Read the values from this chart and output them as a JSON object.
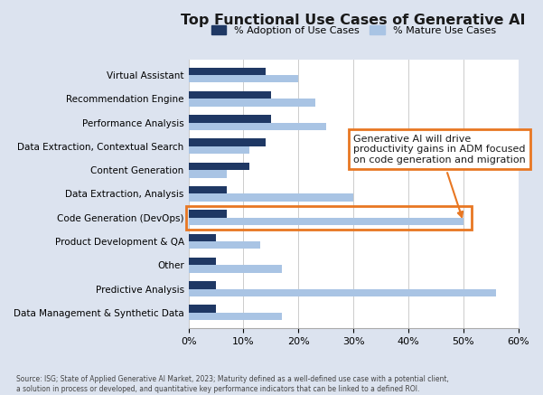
{
  "title": "Top Functional Use Cases of Generative AI",
  "categories": [
    "Virtual Assistant",
    "Recommendation Engine",
    "Performance Analysis",
    "Data Extraction, Contextual Search",
    "Content Generation",
    "Data Extraction, Analysis",
    "Code Generation (DevOps)",
    "Product Development & QA",
    "Other",
    "Predictive Analysis",
    "Data Management & Synthetic Data"
  ],
  "adoption": [
    14,
    15,
    15,
    14,
    11,
    7,
    7,
    5,
    5,
    5,
    5
  ],
  "mature": [
    20,
    23,
    25,
    11,
    7,
    30,
    50,
    13,
    17,
    56,
    17
  ],
  "adoption_color": "#1f3864",
  "mature_color": "#a9c4e4",
  "background_color": "#dce3ef",
  "plot_bg_color": "#ffffff",
  "bar_height": 0.32,
  "xlim": [
    0,
    60
  ],
  "xticks": [
    0,
    10,
    20,
    30,
    40,
    50,
    60
  ],
  "xtick_labels": [
    "0%",
    "10%",
    "20%",
    "30%",
    "40%",
    "50%",
    "60%"
  ],
  "annotation_text": "Generative AI will drive\nproductivity gains in ADM focused\non code generation and migration",
  "annotation_box_color": "#e87722",
  "highlighted_category": "Code Generation (DevOps)",
  "source_text": "Source: ISG; State of Applied Generative AI Market, 2023; Maturity defined as a well-defined use case with a potential client,\na solution in process or developed, and quantitative key performance indicators that can be linked to a defined ROI.",
  "legend_adoption_label": "% Adoption of Use Cases",
  "legend_mature_label": "% Mature Use Cases"
}
